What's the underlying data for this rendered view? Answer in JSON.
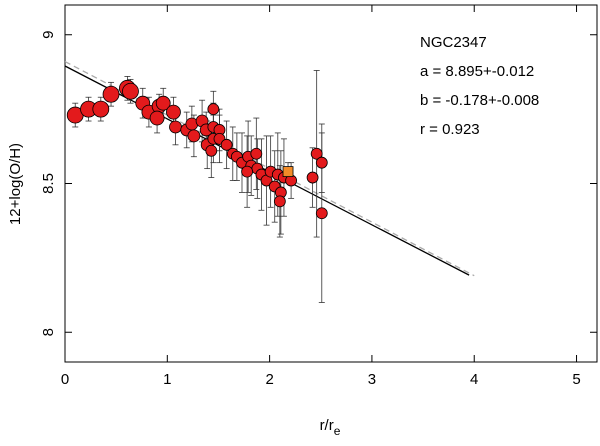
{
  "chart_data": {
    "type": "scatter",
    "xlabel": {
      "main": "r/r",
      "sub": "e"
    },
    "ylabel": "12+log(O/H)",
    "annotations": [
      "NGC2347",
      "a = 8.895+-0.012",
      "b = -0.178+-0.008",
      "r = 0.923"
    ],
    "xlim": [
      0,
      5.2
    ],
    "ylim": [
      7.9,
      9.1
    ],
    "xticks": [
      0,
      1,
      2,
      3,
      4,
      5
    ],
    "yticks": [
      8,
      8.5,
      9
    ],
    "series": [
      {
        "color": "#e31a1c",
        "x": [
          0.1,
          0.23,
          0.35,
          0.45,
          0.61,
          0.64,
          0.76,
          0.82,
          0.92,
          0.96,
          0.9,
          1.06,
          1.08,
          1.19,
          1.24,
          1.26,
          1.34,
          1.38,
          1.39,
          1.45,
          1.45,
          1.43,
          1.51,
          1.51,
          1.45,
          1.58,
          1.64,
          1.68,
          1.73,
          1.79,
          1.82,
          1.87,
          1.88,
          1.78,
          1.92,
          1.97,
          2.01,
          2.05,
          2.08,
          2.11,
          2.1,
          2.14,
          2.21,
          2.42,
          2.46,
          2.51,
          2.51
        ],
        "values": [
          8.73,
          8.75,
          8.75,
          8.8,
          8.82,
          8.81,
          8.77,
          8.74,
          8.76,
          8.77,
          8.72,
          8.74,
          8.69,
          8.68,
          8.7,
          8.66,
          8.71,
          8.68,
          8.63,
          8.69,
          8.65,
          8.61,
          8.68,
          8.65,
          8.75,
          8.63,
          8.6,
          8.59,
          8.57,
          8.59,
          8.56,
          8.6,
          8.55,
          8.54,
          8.53,
          8.51,
          8.54,
          8.49,
          8.53,
          8.47,
          8.44,
          8.52,
          8.51,
          8.52,
          8.6,
          8.57,
          8.4
        ],
        "errors": [
          0.04,
          0.04,
          0.04,
          0.04,
          0.04,
          0.04,
          0.05,
          0.05,
          0.04,
          0.05,
          0.05,
          0.05,
          0.06,
          0.06,
          0.06,
          0.07,
          0.07,
          0.06,
          0.08,
          0.08,
          0.08,
          0.09,
          0.07,
          0.08,
          0.06,
          0.08,
          0.09,
          0.08,
          0.1,
          0.12,
          0.1,
          0.12,
          0.1,
          0.12,
          0.12,
          0.15,
          0.12,
          0.12,
          0.14,
          0.14,
          0.12,
          0.13,
          0.06,
          0.1,
          0.28,
          0.1,
          0.3
        ],
        "sizes": [
          8,
          8,
          8,
          8,
          8,
          8,
          7,
          7,
          7,
          7,
          7,
          7,
          6,
          6,
          6,
          6,
          6,
          6,
          6,
          5.5,
          5.5,
          5.5,
          5.5,
          5.5,
          5.5,
          5.5,
          5.5,
          5.5,
          5.5,
          5.5,
          5.5,
          5.5,
          5.5,
          5.5,
          5.5,
          5.5,
          5.5,
          5.5,
          5.5,
          5.5,
          5.5,
          5.5,
          5.5,
          5.5,
          5.5,
          5.5,
          5.5
        ]
      },
      {
        "color": "#f28c28",
        "marker": "square",
        "x": [
          2.18
        ],
        "values": [
          8.54
        ],
        "errors": [
          0.03
        ],
        "sizes": [
          5
        ]
      }
    ],
    "lines": [
      {
        "color": "#000000",
        "dash": false,
        "x": [
          0,
          3.95
        ],
        "values": [
          8.895,
          8.192
        ]
      },
      {
        "color": "#aaaaaa",
        "dash": true,
        "x": [
          0,
          4
        ],
        "values": [
          8.91,
          8.19
        ]
      }
    ]
  }
}
